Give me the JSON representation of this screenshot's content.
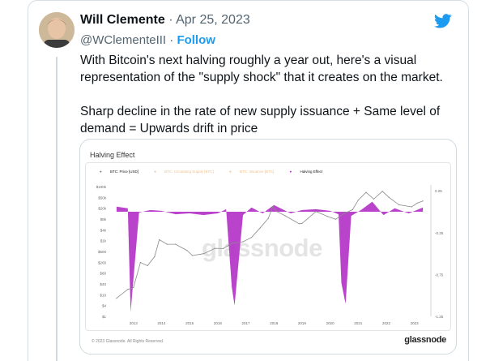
{
  "tweet": {
    "author_name": "Will Clemente",
    "separator": "·",
    "date": "Apr 25, 2023",
    "handle": "@WClementeIII",
    "handle_separator": "·",
    "follow_label": "Follow",
    "text_p1": "With Bitcoin's next halving roughly a year out, here's a visual representation of the \"supply shock\" that it creates on the market.",
    "text_p2": "Sharp decline in the rate of new supply issuance + Same level of demand = Upwards drift in price",
    "icons": {
      "brand": "twitter-bird-icon",
      "avatar": "avatar-photo"
    },
    "colors": {
      "accent": "#1d9bf0",
      "muted": "#536471"
    }
  },
  "media": {
    "title": "Halving Effect",
    "watermark": "glassnode",
    "footer_note": "© 2023 Glassnode. All Rights Reserved.",
    "brand": "glassnode",
    "legend": [
      {
        "label": "BTC: Price [USD]",
        "color": "#777777"
      },
      {
        "label": "BTC: Circulating Supply [BTC]",
        "color": "#f7b26a"
      },
      {
        "label": "BTC: Issuance [BTC]",
        "color": "#f7b26a"
      },
      {
        "label": "Halving Effect",
        "color": "#b12fc4"
      }
    ]
  },
  "chart_data": {
    "type": "line",
    "x_ticks": [
      "2013",
      "2014",
      "2015",
      "2016",
      "2017",
      "2018",
      "2019",
      "2020",
      "2021",
      "2022",
      "2023"
    ],
    "y_left_ticks": [
      "$100k",
      "$50k",
      "$20k",
      "$8k",
      "$4k",
      "$1k",
      "$500",
      "$200",
      "$80",
      "$40",
      "$10",
      "$4",
      "$1"
    ],
    "y_right_ticks": [
      "0.25",
      "-0.25",
      "-0.75",
      "-1.25"
    ],
    "y_right_lim": [
      -1.25,
      0.3
    ],
    "log_scale_left": true,
    "series": [
      {
        "name": "BTC: Price [USD]",
        "color": "#8a8a8a",
        "x": [
          2012.4,
          2012.8,
          2013.0,
          2013.25,
          2013.5,
          2013.75,
          2013.92,
          2014.2,
          2014.5,
          2014.9,
          2015.1,
          2015.5,
          2015.9,
          2016.2,
          2016.5,
          2016.9,
          2017.2,
          2017.5,
          2017.8,
          2017.96,
          2018.1,
          2018.4,
          2018.9,
          2019.0,
          2019.5,
          2019.9,
          2020.2,
          2020.5,
          2020.8,
          2021.0,
          2021.28,
          2021.55,
          2021.86,
          2022.1,
          2022.45,
          2022.9,
          2023.1,
          2023.3
        ],
        "values": [
          5,
          11,
          13,
          120,
          90,
          200,
          900,
          600,
          600,
          350,
          220,
          260,
          420,
          410,
          650,
          750,
          1100,
          2500,
          6000,
          17000,
          11000,
          7500,
          3700,
          3800,
          11000,
          7200,
          5500,
          9200,
          13000,
          30000,
          60000,
          33000,
          66000,
          38000,
          20000,
          16500,
          23000,
          28000
        ]
      },
      {
        "name": "Halving Effect",
        "color": "#b12fc4",
        "x": [
          2012.4,
          2012.8,
          2012.9,
          2013.2,
          2013.6,
          2014.0,
          2014.5,
          2015.0,
          2015.5,
          2016.0,
          2016.3,
          2016.5,
          2016.6,
          2016.9,
          2017.2,
          2017.6,
          2018.0,
          2018.6,
          2019.0,
          2019.5,
          2020.0,
          2020.3,
          2020.4,
          2020.55,
          2020.75,
          2021.1,
          2021.5,
          2021.9,
          2022.3,
          2022.8,
          2023.3
        ],
        "values": [
          0.06,
          0.04,
          -1.2,
          -0.01,
          0.02,
          0.01,
          -0.03,
          -0.02,
          -0.04,
          -0.02,
          0.03,
          -0.9,
          -1.12,
          -0.04,
          0.05,
          -0.02,
          0.08,
          -0.02,
          0.02,
          0.03,
          0.01,
          -0.03,
          -0.85,
          -1.1,
          -0.05,
          0.02,
          0.12,
          -0.04,
          0.04,
          -0.02,
          0.05
        ]
      }
    ]
  }
}
